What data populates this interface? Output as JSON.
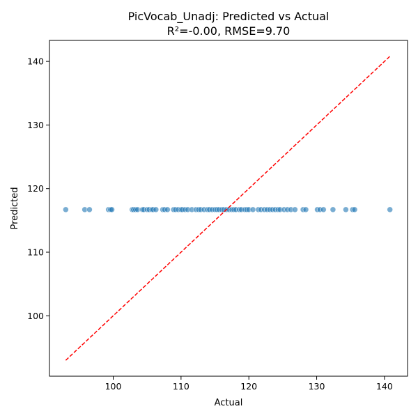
{
  "chart_data": {
    "type": "scatter",
    "title": "PicVocab_Unadj: Predicted vs Actual",
    "subtitle": "R²=-0.00, RMSE=9.70",
    "xlabel": "Actual",
    "ylabel": "Predicted",
    "xlim": [
      90.6,
      143.4
    ],
    "ylim": [
      90.5,
      143.3
    ],
    "xticks": [
      100,
      110,
      120,
      130,
      140
    ],
    "yticks": [
      100,
      110,
      120,
      130,
      140
    ],
    "grid": false,
    "point_color": "#1f77b4",
    "line_color": "#ff0000",
    "reference_line": {
      "style": "dashed",
      "points": [
        [
          93.0,
          93.0
        ],
        [
          140.8,
          140.8
        ]
      ]
    },
    "x": [
      93.0,
      95.8,
      96.5,
      99.3,
      99.6,
      99.8,
      102.8,
      103.0,
      103.3,
      103.6,
      104.3,
      104.5,
      105.0,
      105.3,
      105.7,
      105.9,
      106.3,
      107.3,
      107.6,
      108.0,
      108.9,
      109.2,
      109.6,
      110.0,
      110.2,
      110.6,
      111.0,
      111.6,
      112.2,
      112.6,
      112.9,
      113.4,
      113.9,
      114.2,
      114.6,
      115.0,
      115.3,
      115.6,
      116.0,
      116.3,
      116.7,
      117.1,
      117.5,
      117.8,
      118.1,
      118.6,
      118.9,
      119.4,
      119.7,
      120.0,
      120.6,
      121.4,
      121.8,
      122.3,
      122.7,
      123.1,
      123.5,
      123.9,
      124.3,
      124.6,
      125.2,
      125.7,
      126.2,
      126.8,
      128.0,
      128.4,
      130.1,
      130.5,
      131.0,
      132.4,
      134.3,
      135.3,
      135.6,
      140.8
    ],
    "y": [
      116.7,
      116.7,
      116.7,
      116.7,
      116.7,
      116.7,
      116.7,
      116.7,
      116.7,
      116.7,
      116.7,
      116.7,
      116.7,
      116.7,
      116.7,
      116.7,
      116.7,
      116.7,
      116.7,
      116.7,
      116.7,
      116.7,
      116.7,
      116.7,
      116.7,
      116.7,
      116.7,
      116.7,
      116.7,
      116.7,
      116.7,
      116.7,
      116.7,
      116.7,
      116.7,
      116.7,
      116.7,
      116.7,
      116.7,
      116.7,
      116.7,
      116.7,
      116.7,
      116.7,
      116.7,
      116.7,
      116.7,
      116.7,
      116.7,
      116.7,
      116.7,
      116.7,
      116.7,
      116.7,
      116.7,
      116.7,
      116.7,
      116.7,
      116.7,
      116.7,
      116.7,
      116.7,
      116.7,
      116.7,
      116.7,
      116.7,
      116.7,
      116.7,
      116.7,
      116.7,
      116.7,
      116.7,
      116.7,
      116.7
    ]
  }
}
